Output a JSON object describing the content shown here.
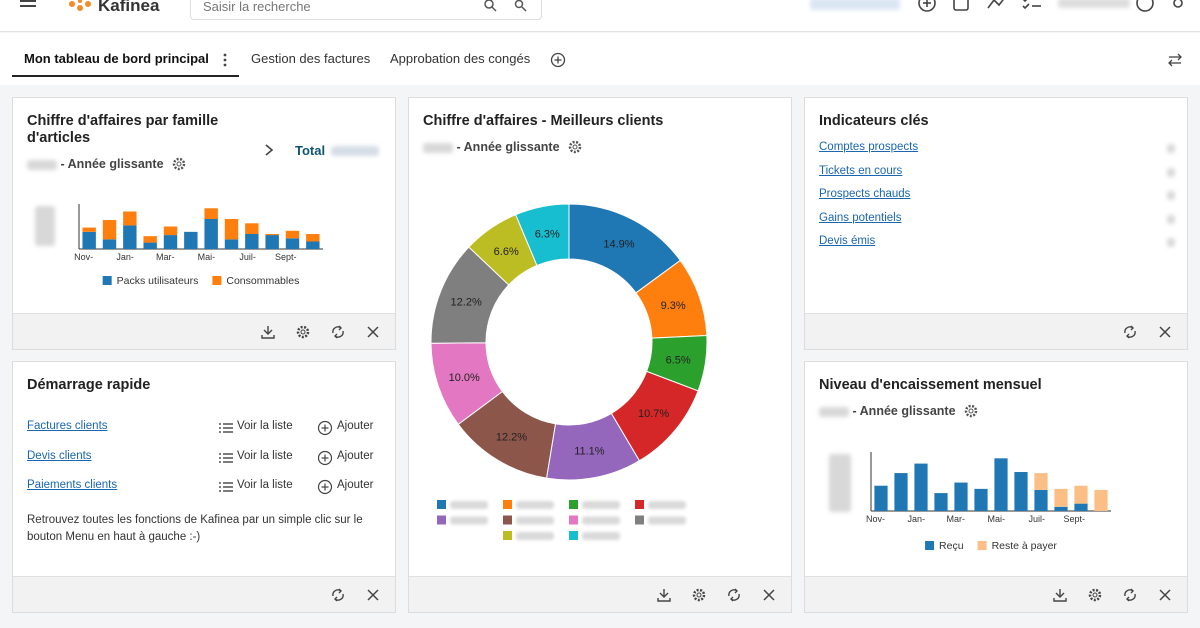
{
  "header": {
    "logo": "Kafinea",
    "search_placeholder": "Saisir la recherche"
  },
  "tabs": [
    "Mon tableau de bord principal",
    "Gestion des factures",
    "Approbation des congés"
  ],
  "widgets": {
    "revenue_by_family": {
      "title": "Chiffre d'affaires par famille d'articles",
      "subtitle": "- Année glissante",
      "total_label": "Total",
      "chart_data": {
        "type": "bar",
        "stacked": true,
        "categories": [
          "Nov-",
          null,
          "Jan-",
          null,
          "Mar-",
          null,
          "Mai-",
          null,
          "Juil-",
          null,
          "Sept-",
          null
        ],
        "series": [
          {
            "name": "Packs utilisateurs",
            "color": "#1f77b4",
            "values": [
              16,
              9,
              22,
              6,
              13,
              16,
              28,
              9,
              14,
              13,
              10,
              7
            ]
          },
          {
            "name": "Consommables",
            "color": "#ff7f0e",
            "values": [
              4,
              18,
              13,
              6,
              8,
              0,
              10,
              19,
              10,
              1,
              7,
              7
            ]
          }
        ],
        "ylim": [
          0,
          42
        ]
      }
    },
    "top_clients": {
      "title": "Chiffre d'affaires - Meilleurs clients",
      "subtitle": "- Année glissante",
      "chart_data": {
        "type": "pie",
        "donut": true,
        "categories": [
          null,
          null,
          null,
          null,
          null,
          null,
          null,
          null,
          null,
          null
        ],
        "values": [
          14.9,
          9.3,
          6.5,
          10.7,
          11.1,
          12.2,
          10.0,
          12.2,
          6.6,
          6.3
        ],
        "value_labels": [
          "14.9%",
          "9.3%",
          "6.5%",
          "10.7%",
          "11.1%",
          "12.2%",
          "10.0%",
          "12.2%",
          "6.6%",
          "6.3%"
        ],
        "colors": [
          "#1f77b4",
          "#ff7f0e",
          "#2ca02c",
          "#d62728",
          "#9467bd",
          "#8c564b",
          "#e377c2",
          "#7f7f7f",
          "#bcbd22",
          "#17becf"
        ]
      }
    },
    "key_indicators": {
      "title": "Indicateurs clés",
      "links": [
        "Comptes prospects",
        "Tickets en cours",
        "Prospects chauds",
        "Gains potentiels",
        "Devis émis"
      ]
    },
    "quick_start": {
      "title": "Démarrage rapide",
      "rows": [
        {
          "link": "Factures clients",
          "list": "Voir la liste",
          "add": "Ajouter"
        },
        {
          "link": "Devis clients",
          "list": "Voir la liste",
          "add": "Ajouter"
        },
        {
          "link": "Paiements clients",
          "list": "Voir la liste",
          "add": "Ajouter"
        }
      ],
      "text": "Retrouvez toutes les fonctions de Kafinea par un simple clic sur le bouton Menu en haut à gauche :-)"
    },
    "collection": {
      "title": "Niveau d'encaissement mensuel",
      "subtitle": "- Année glissante",
      "chart_data": {
        "type": "bar",
        "stacked": true,
        "categories": [
          "Nov-",
          null,
          "Jan-",
          null,
          "Mar-",
          null,
          "Mai-",
          null,
          "Juil-",
          null,
          "Sept-",
          null
        ],
        "series": [
          {
            "name": "Reçu",
            "color": "#1f77b4",
            "values": [
              24,
              36,
              45,
              17,
              27,
              21,
              50,
              37,
              20,
              4,
              7,
              0
            ]
          },
          {
            "name": "Reste à payer",
            "color": "#fbbf86",
            "values": [
              0,
              0,
              0,
              0,
              0,
              0,
              0,
              0,
              16,
              17,
              17,
              20
            ]
          }
        ],
        "ylim": [
          0,
          56
        ]
      }
    }
  }
}
